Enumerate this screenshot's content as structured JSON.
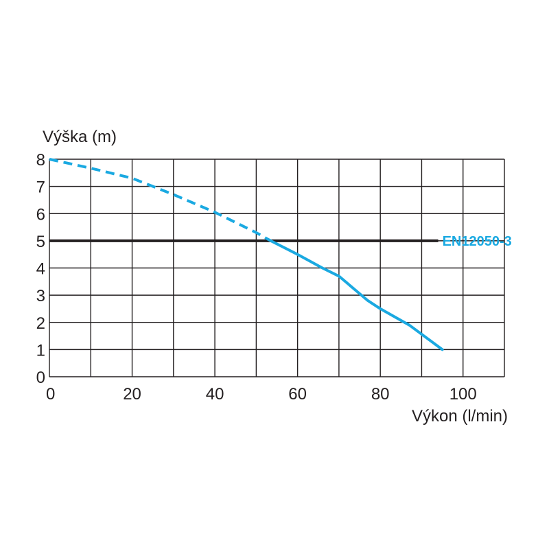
{
  "chart_data": {
    "type": "line",
    "xlabel": "Výkon (l/min)",
    "ylabel": "Výška (m)",
    "xlim": [
      0,
      110
    ],
    "ylim": [
      0,
      8
    ],
    "xticks": [
      0,
      20,
      40,
      60,
      80,
      100
    ],
    "yticks": [
      0,
      1,
      2,
      3,
      4,
      5,
      6,
      7,
      8
    ],
    "grid": true,
    "series": [
      {
        "color": "#1aa9e1",
        "dashed_until_x": 53.5,
        "x": [
          0,
          10,
          20,
          30,
          40,
          50,
          53.5,
          60,
          66,
          70,
          77,
          80,
          87,
          95
        ],
        "y": [
          8.0,
          7.67,
          7.3,
          6.7,
          6.05,
          5.3,
          5.0,
          4.5,
          4.0,
          3.7,
          2.8,
          2.5,
          1.9,
          1.0
        ]
      }
    ],
    "reference_lines": [
      {
        "label": "EN12050-3",
        "y": 5,
        "x_start": 0,
        "x_end": 94,
        "line_color": "#231f20",
        "label_color": "#1aa9e1"
      }
    ]
  }
}
